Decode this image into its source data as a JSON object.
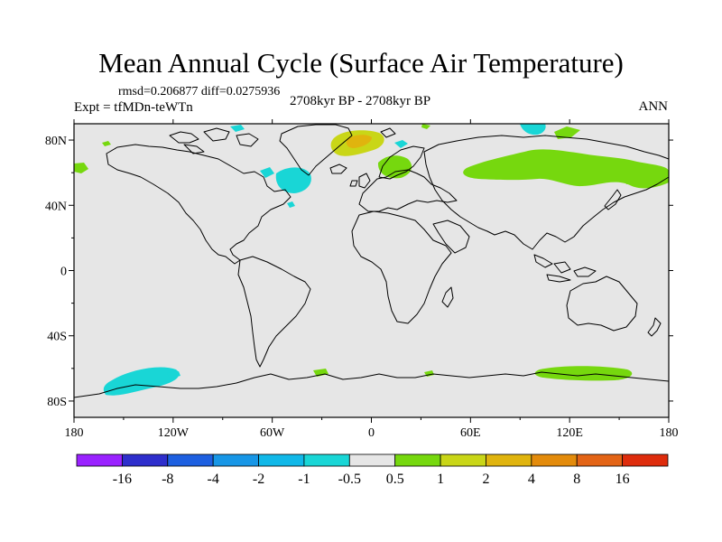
{
  "title": "Mean Annual Cycle (Surface Air Temperature)",
  "stats": {
    "rmsd_label": "rmsd=",
    "rmsd": "0.206877",
    "diff_label": "diff=",
    "diff": "0.0275936"
  },
  "experiment": "Expt = tfMDn-teWTn",
  "period": "2708kyr BP - 2708kyr BP",
  "season": "ANN",
  "map": {
    "lat_ticks": [
      "80N",
      "40N",
      "0",
      "40S",
      "80S"
    ],
    "lon_ticks": [
      "180",
      "120W",
      "60W",
      "0",
      "60E",
      "120E",
      "180"
    ],
    "lat_range": [
      -90,
      90
    ],
    "lon_range": [
      -180,
      180
    ],
    "background_color": "#e6e6e6"
  },
  "colorbar": {
    "labels": [
      "-16",
      "-8",
      "-4",
      "-2",
      "-1",
      "-0.5",
      "0.5",
      "1",
      "2",
      "4",
      "8",
      "16"
    ],
    "colors": [
      "#9a22ff",
      "#2e2ecc",
      "#1d5fe0",
      "#1796e6",
      "#11b8e8",
      "#19d6d6",
      "#e6e6e6",
      "#76d80e",
      "#c9d617",
      "#e0b40e",
      "#e38b0b",
      "#e36416",
      "#de2c0c"
    ]
  },
  "anomalies": [
    {
      "sign": "negative",
      "level": "-1",
      "color": "#19d6d6",
      "region": "Southern Pacific near Antarctica"
    },
    {
      "sign": "negative",
      "level": "-1",
      "color": "#19d6d6",
      "region": "Labrador Sea"
    },
    {
      "sign": "negative",
      "level": "-1",
      "color": "#19d6d6",
      "region": "Arctic Ocean north of Barents Sea"
    },
    {
      "sign": "positive",
      "level": "1",
      "color": "#76d80e",
      "region": "Northern Eurasia"
    },
    {
      "sign": "positive",
      "level": "1",
      "color": "#76d80e",
      "region": "Southern Ocean south of Indian Ocean"
    },
    {
      "sign": "positive",
      "level": "2",
      "color": "#c9d617",
      "region": "Greenland"
    },
    {
      "sign": "positive",
      "level": "4",
      "color": "#e0b40e",
      "region": "Greenland summit"
    }
  ]
}
